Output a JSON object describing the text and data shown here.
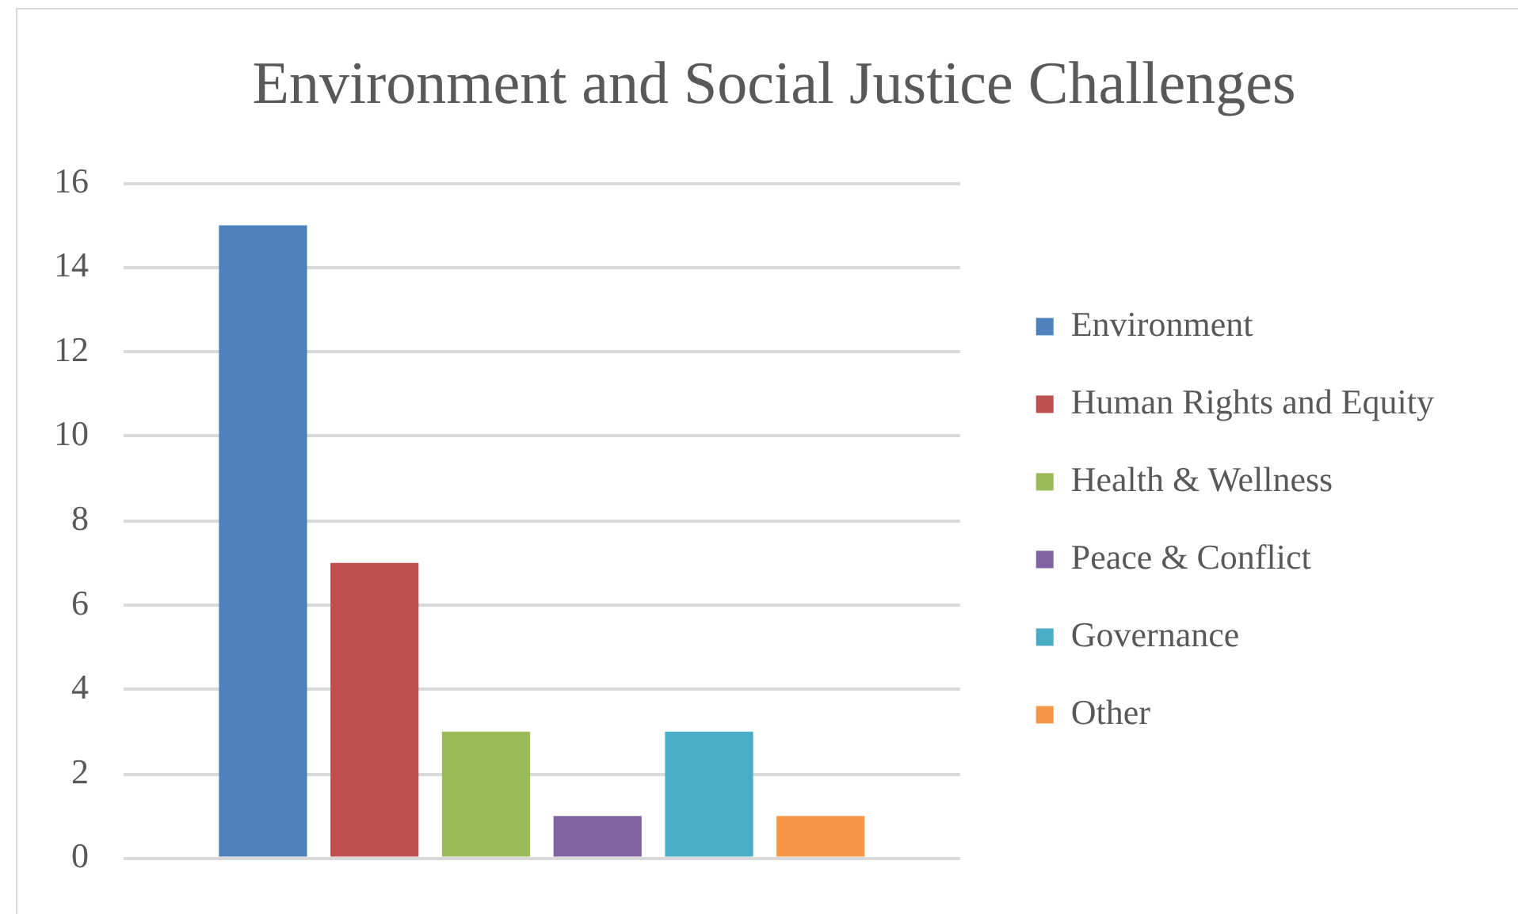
{
  "chart_data": {
    "type": "bar",
    "title": "Environment and Social Justice Challenges",
    "categories": [
      null
    ],
    "series": [
      {
        "name": "Environment",
        "color": "#4f81bd",
        "values": [
          15
        ]
      },
      {
        "name": "Human Rights and Equity",
        "color": "#c0504d",
        "values": [
          7
        ]
      },
      {
        "name": "Health & Wellness",
        "color": "#9bbb59",
        "values": [
          3
        ]
      },
      {
        "name": "Peace & Conflict",
        "color": "#8064a2",
        "values": [
          1
        ]
      },
      {
        "name": "Governance",
        "color": "#4bacc6",
        "values": [
          3
        ]
      },
      {
        "name": "Other",
        "color": "#f79646",
        "values": [
          1
        ]
      }
    ],
    "ylim": [
      0,
      16
    ],
    "yticks": [
      0,
      2,
      4,
      6,
      8,
      10,
      12,
      14,
      16
    ],
    "grid": "y",
    "legend": "right"
  }
}
